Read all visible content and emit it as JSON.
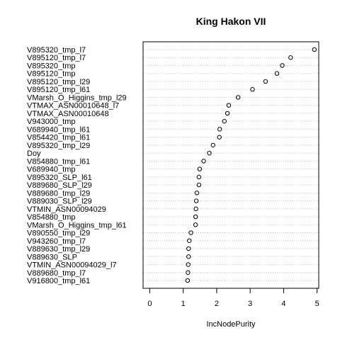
{
  "chart_data": {
    "type": "scatter",
    "title": "King Hakon VII",
    "xlabel": "IncNodePurity",
    "ylabel": "",
    "xlim": [
      -0.2,
      5.05
    ],
    "xticks": [
      0,
      1,
      2,
      3,
      4,
      5
    ],
    "grid": "horizontal dotted",
    "variables": [
      "V895320_tmp_l7",
      "V895120_tmp_l7",
      "V895320_tmp",
      "V895120_tmp",
      "V895120_tmp_l29",
      "V895120_tmp_l61",
      "VMarsh_O_Higgins_tmp_l29",
      "VTMAX_ASN00010648_l7",
      "VTMAX_ASN00010648",
      "V943000_tmp",
      "V689940_tmp_l61",
      "V854420_tmp_l61",
      "V895320_tmp_l29",
      "Doy",
      "V854880_tmp_l61",
      "V689940_tmp",
      "V895320_SLP_l61",
      "V889680_SLP_l29",
      "V889680_tmp_l29",
      "V889030_SLP_l29",
      "VTMIN_ASN00094029",
      "V854880_tmp",
      "VMarsh_O_Higgins_tmp_l61",
      "V890550_tmp_l29",
      "V943260_tmp_l7",
      "V889630_tmp_l29",
      "V889630_SLP",
      "VTMIN_ASN00094029_l7",
      "V889680_tmp_l7",
      "V916800_tmp_l61"
    ],
    "values": [
      4.92,
      4.21,
      3.96,
      3.8,
      3.46,
      3.07,
      2.64,
      2.36,
      2.32,
      2.23,
      2.09,
      2.08,
      1.89,
      1.78,
      1.61,
      1.49,
      1.47,
      1.47,
      1.41,
      1.39,
      1.38,
      1.37,
      1.37,
      1.23,
      1.18,
      1.16,
      1.16,
      1.15,
      1.14,
      1.13
    ]
  }
}
